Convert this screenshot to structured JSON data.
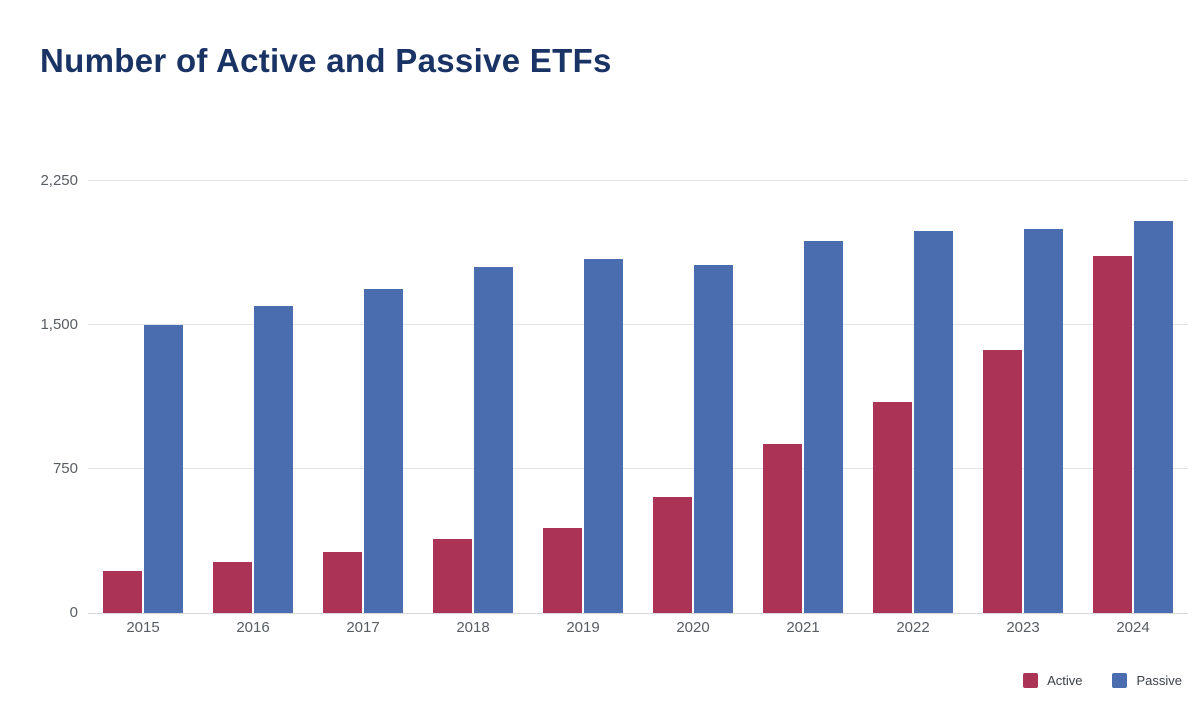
{
  "title": "Number of Active and Passive ETFs",
  "chart_data": {
    "type": "bar",
    "title": "Number of Active and Passive ETFs",
    "categories": [
      "2015",
      "2016",
      "2017",
      "2018",
      "2019",
      "2020",
      "2021",
      "2022",
      "2023",
      "2024"
    ],
    "series": [
      {
        "name": "Active",
        "color": "#aa3356",
        "values": [
          220,
          265,
          320,
          385,
          445,
          605,
          880,
          1100,
          1370,
          1860
        ]
      },
      {
        "name": "Passive",
        "color": "#4a6db0",
        "values": [
          1500,
          1600,
          1690,
          1800,
          1845,
          1815,
          1935,
          1990,
          2000,
          2040
        ]
      }
    ],
    "xlabel": "",
    "ylabel": "",
    "ylim": [
      0,
      2250
    ],
    "y_ticks": [
      {
        "label": "0",
        "value": 0
      },
      {
        "label": "750",
        "value": 750
      },
      {
        "label": "1,500",
        "value": 1500
      },
      {
        "label": "2,250",
        "value": 2250
      }
    ],
    "grid": "horizontal-only",
    "legend_position": "bottom-right"
  },
  "colors": {
    "title": "#1a3365",
    "axis_label": "#585d63",
    "gridline": "#e4e4e7",
    "baseline": "#d7d7da",
    "background": "#ffffff"
  }
}
